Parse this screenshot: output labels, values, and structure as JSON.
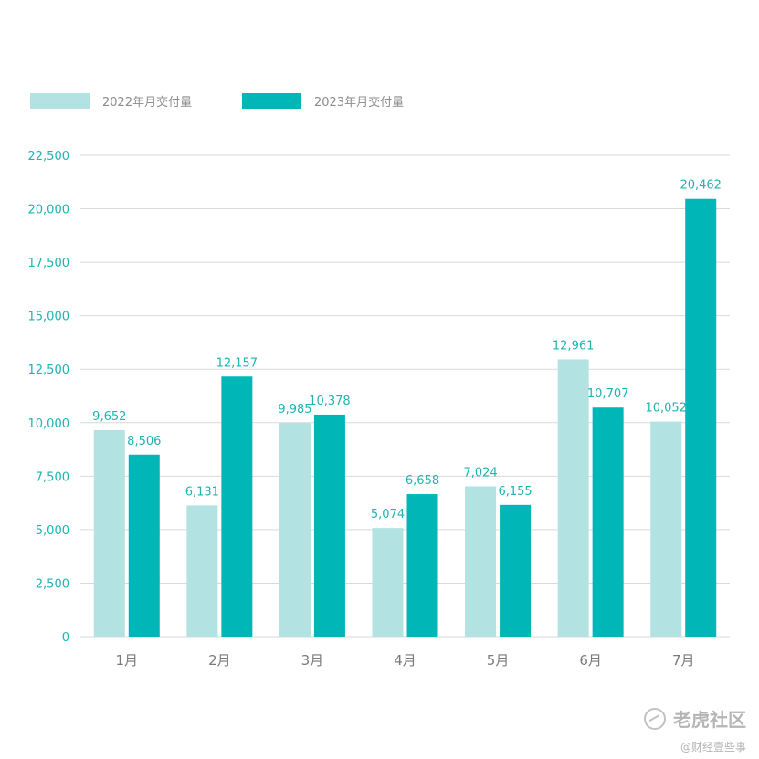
{
  "legend": {
    "series_a": "2022年月交付量",
    "series_b": "2023年月交付量"
  },
  "colors": {
    "series_a": "#b2e2e2",
    "series_b": "#00b6b6",
    "axis_text": "#1fb3b3",
    "category_text": "#7a7a7a",
    "grid": "#d9d9d9"
  },
  "watermark": {
    "brand": "老虎社区",
    "sub": "@财经壹些事"
  },
  "chart_data": {
    "type": "bar",
    "categories": [
      "1月",
      "2月",
      "3月",
      "4月",
      "5月",
      "6月",
      "7月"
    ],
    "series": [
      {
        "name": "2022年月交付量",
        "values": [
          9652,
          6131,
          9985,
          5074,
          7024,
          12961,
          10052
        ],
        "labels": [
          "9,652",
          "6,131",
          "9,985",
          "5,074",
          "7,024",
          "12,961",
          "10,052"
        ]
      },
      {
        "name": "2023年月交付量",
        "values": [
          8506,
          12157,
          10378,
          6658,
          6155,
          10707,
          20462
        ],
        "labels": [
          "8,506",
          "12,157",
          "10,378",
          "6,658",
          "6,155",
          "10,707",
          "20,462"
        ]
      }
    ],
    "yticks": [
      0,
      2500,
      5000,
      7500,
      10000,
      12500,
      15000,
      17500,
      20000,
      22500
    ],
    "ytick_labels": [
      "0",
      "2,500",
      "5,000",
      "7,500",
      "10,000",
      "12,500",
      "15,000",
      "17,500",
      "20,000",
      "22,500"
    ],
    "ylim": [
      0,
      22500
    ],
    "grid": true,
    "legend_position": "top-left"
  }
}
